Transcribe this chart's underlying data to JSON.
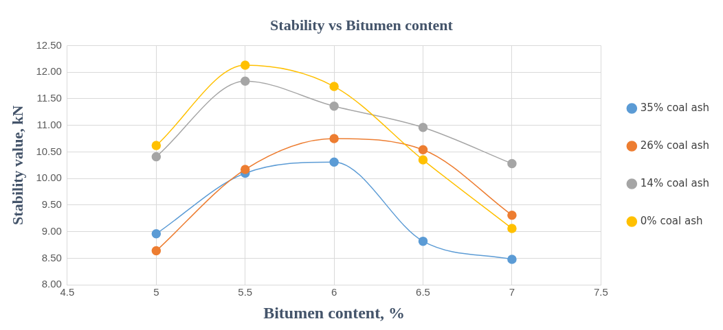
{
  "chart_data": {
    "type": "line",
    "title": "Stability vs Bitumen content",
    "xlabel": "Bitumen content, %",
    "ylabel": "Stability value, kN",
    "x": [
      5,
      5.5,
      6,
      6.5,
      7
    ],
    "series": [
      {
        "name": "35% coal ash",
        "color": "#5b9bd5",
        "values": [
          8.96,
          10.1,
          10.31,
          8.82,
          8.48
        ]
      },
      {
        "name": "26% coal ash",
        "color": "#ed7d31",
        "values": [
          8.64,
          10.17,
          10.75,
          10.54,
          9.31
        ]
      },
      {
        "name": "14% coal ash",
        "color": "#a5a5a5",
        "values": [
          10.41,
          11.83,
          11.36,
          10.96,
          10.28
        ]
      },
      {
        "name": "0% coal ash",
        "color": "#ffc000",
        "values": [
          10.62,
          12.13,
          11.73,
          10.35,
          9.06
        ]
      }
    ],
    "xlim": [
      4.5,
      7.5
    ],
    "xticks": [
      4.5,
      5,
      5.5,
      6,
      6.5,
      7,
      7.5
    ],
    "ylim": [
      8,
      12.5
    ],
    "yticks": [
      {
        "value": 8,
        "label": "8.00"
      },
      {
        "value": 8.5,
        "label": "8.50"
      },
      {
        "value": 9,
        "label": "9.00"
      },
      {
        "value": 9.5,
        "label": "9.50"
      },
      {
        "value": 10,
        "label": "10.00"
      },
      {
        "value": 10.5,
        "label": "10.50"
      },
      {
        "value": 11,
        "label": "11.00"
      },
      {
        "value": 11.5,
        "label": "11.50"
      },
      {
        "value": 12,
        "label": "12.00"
      },
      {
        "value": 12.5,
        "label": "12.50"
      }
    ],
    "grid": true,
    "legend": "right",
    "marker": "circle",
    "line_style": "solid"
  }
}
